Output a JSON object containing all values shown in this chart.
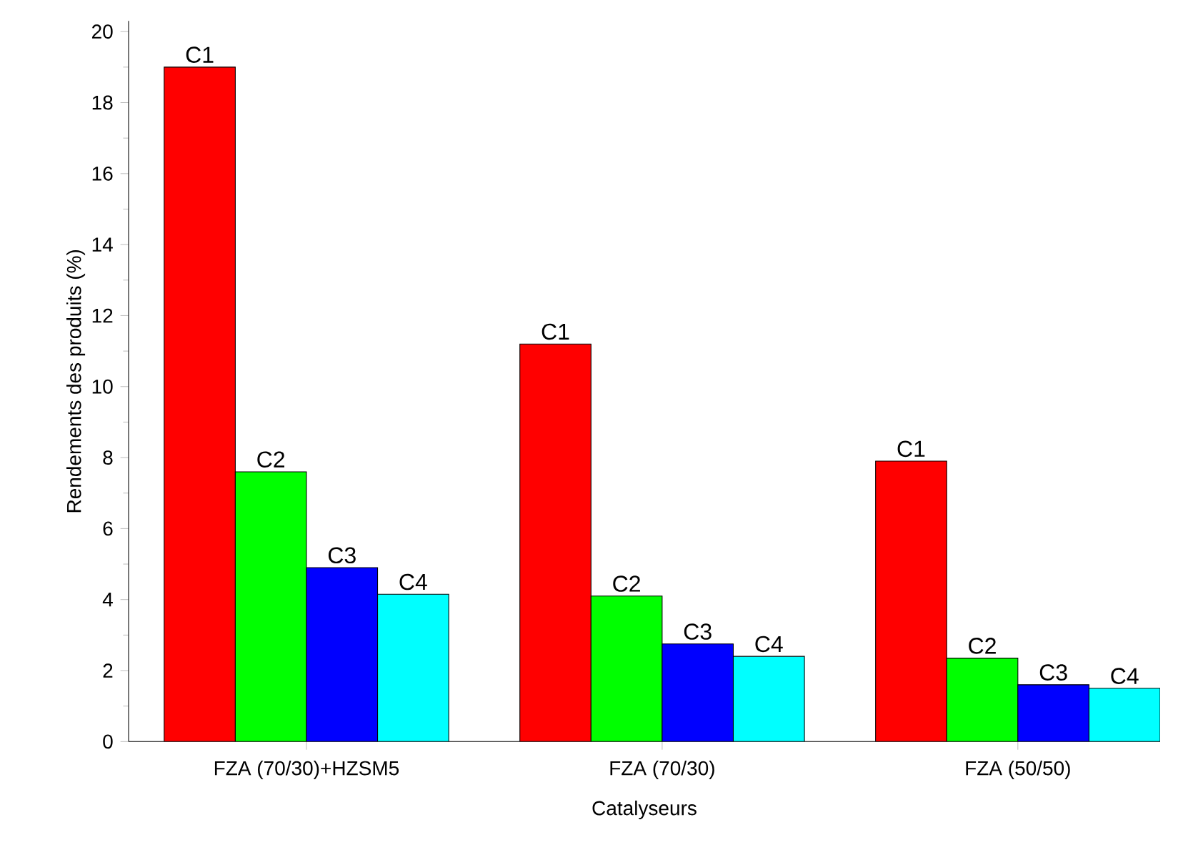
{
  "chart_data": {
    "type": "bar",
    "xlabel": "Catalyseurs",
    "ylabel": "Rendements des produits (%)",
    "categories": [
      "FZA (70/30)+HZSM5",
      "FZA (70/30)",
      "FZA (50/50)"
    ],
    "series": [
      {
        "name": "C1",
        "color": "#ff0000",
        "values": [
          19.0,
          11.2,
          7.9
        ]
      },
      {
        "name": "C2",
        "color": "#00ff00",
        "values": [
          7.6,
          4.1,
          2.35
        ]
      },
      {
        "name": "C3",
        "color": "#0000ff",
        "values": [
          4.9,
          2.75,
          1.6
        ]
      },
      {
        "name": "C4",
        "color": "#00ffff",
        "values": [
          4.15,
          2.4,
          1.5
        ]
      }
    ],
    "ylim": [
      0,
      20.3
    ],
    "yticks": [
      0,
      2,
      4,
      6,
      8,
      10,
      12,
      14,
      16,
      18,
      20
    ],
    "grid": false
  }
}
